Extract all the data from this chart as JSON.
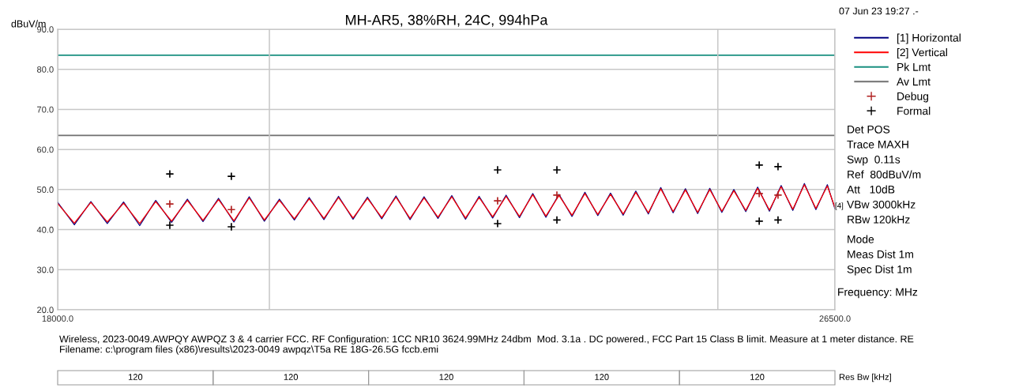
{
  "chart_data": {
    "type": "line",
    "title": "MH-AR5, 38%RH, 24C, 994hPa",
    "ylabel": "dBuV/m",
    "xlabel": "Frequency: MHz",
    "x": [
      18000,
      18150,
      18300,
      18450,
      18600,
      18750,
      18900,
      19050,
      19200,
      19350,
      19500,
      19650,
      19800,
      19950,
      20100,
      20250,
      20400,
      20550,
      20700,
      20850,
      21000,
      21150,
      21300,
      21450,
      21600,
      21750,
      21900,
      22050,
      22200,
      22350,
      22500,
      22650,
      22800,
      22950,
      23100,
      23250,
      23400,
      23550,
      23700,
      23850,
      24000,
      24150,
      24300,
      24450,
      24600,
      24750,
      24900,
      25050,
      25200,
      25350,
      25500,
      25650,
      25800,
      25950,
      26100,
      26250,
      26400,
      26500
    ],
    "series": [
      {
        "name": "[1] Horizontal",
        "color": "#000080",
        "values": [
          46.8,
          41.2,
          47.0,
          41.5,
          46.9,
          41.0,
          47.3,
          41.8,
          47.6,
          42.0,
          47.8,
          41.9,
          48.2,
          42.1,
          47.6,
          42.4,
          48.0,
          42.5,
          48.3,
          42.6,
          48.1,
          42.7,
          48.4,
          42.5,
          48.2,
          42.8,
          48.5,
          42.6,
          48.3,
          42.9,
          48.6,
          43.0,
          49.0,
          43.1,
          48.8,
          43.3,
          49.3,
          43.5,
          49.1,
          43.6,
          49.6,
          43.9,
          50.5,
          44.2,
          50.2,
          44.0,
          50.3,
          44.3,
          50.0,
          44.5,
          50.6,
          44.6,
          51.0,
          44.8,
          51.5,
          45.0,
          51.2,
          45.2
        ]
      },
      {
        "name": "[2] Vertical",
        "color": "#ff0000",
        "values": [
          46.5,
          41.6,
          46.8,
          41.9,
          46.6,
          41.5,
          47.0,
          42.1,
          47.3,
          42.3,
          47.5,
          42.2,
          47.9,
          42.4,
          47.3,
          42.7,
          47.7,
          42.8,
          48.0,
          42.9,
          47.8,
          43.0,
          48.1,
          42.8,
          47.9,
          43.1,
          48.2,
          42.9,
          48.0,
          43.2,
          48.3,
          43.3,
          48.7,
          43.4,
          48.5,
          43.6,
          49.0,
          43.8,
          48.8,
          43.9,
          49.3,
          44.2,
          50.2,
          44.5,
          49.9,
          44.3,
          50.0,
          44.6,
          49.7,
          44.8,
          50.3,
          44.9,
          50.7,
          45.1,
          51.2,
          45.3,
          50.9,
          45.5
        ]
      },
      {
        "name": "Debug",
        "type": "scatter",
        "marker": "cross",
        "color": "#b02020",
        "x": [
          19033,
          19625,
          22405,
          23076,
          25520,
          25760
        ],
        "values": [
          46.4,
          45.0,
          47.2,
          48.6,
          49.0,
          48.6
        ]
      },
      {
        "name": "Formal",
        "type": "scatter",
        "marker": "cross",
        "color": "#000000",
        "x": [
          19033,
          19625,
          22405,
          23076,
          25520,
          25760,
          19033,
          19625,
          22405,
          23076,
          25520,
          25760
        ],
        "values": [
          53.9,
          53.3,
          54.9,
          54.9,
          56.1,
          55.7,
          41.1,
          40.7,
          41.5,
          42.4,
          42.1,
          42.4
        ]
      }
    ],
    "ref_lines": [
      {
        "axis": "y",
        "value": 83.5,
        "label": "Pk Lmt",
        "color": "#1a9080"
      },
      {
        "axis": "y",
        "value": 63.5,
        "label": "Av Lmt",
        "color": "#707070"
      }
    ],
    "log": "x",
    "xlim": [
      18000,
      26500
    ],
    "xticks": [
      {
        "value": 18000,
        "label": "18000.0"
      },
      {
        "value": 20000,
        "label": null
      },
      {
        "value": 25000,
        "label": null
      },
      {
        "value": 26500,
        "label": "26500.0"
      }
    ],
    "ylim": [
      20,
      90
    ],
    "yticks": [
      {
        "value": 20,
        "label": "20.0"
      },
      {
        "value": 30,
        "label": "30.0"
      },
      {
        "value": 40,
        "label": "40.0"
      },
      {
        "value": 50,
        "label": "50.0"
      },
      {
        "value": 60,
        "label": "60.0"
      },
      {
        "value": 70,
        "label": "70.0"
      },
      {
        "value": 80,
        "label": "80.0"
      },
      {
        "value": 90,
        "label": "90.0"
      }
    ],
    "grid": true,
    "legend": "right",
    "line_style": "solid",
    "annotations": [
      "07 Jun 23 19:27 .-",
      "Det POS",
      "Trace MAXH",
      "Swp  0.11s",
      "Ref  80dBuV/m",
      "Att   10dB",
      "VBw 3000kHz",
      "RBw 120kHz",
      "Mode",
      "Meas Dist 1m",
      "Spec Dist 1m",
      "[4]",
      "Wireless, 2023-0049.AWPQY AWPQZ 3 & 4 carrier FCC. RF Configuration: 1CC NR10 3624.99MHz 24dbm  Mod. 3.1a . DC powered., FCC Part 15 Class B limit. Measure at 1 meter distance. RE",
      "Filename: c:\\program files (x86)\\results\\2023-0049 awpqz\\T5a RE 18G-26.5G fccb.emi",
      "120",
      "120",
      "120",
      "120",
      "120",
      "Res Bw [kHz]"
    ]
  }
}
